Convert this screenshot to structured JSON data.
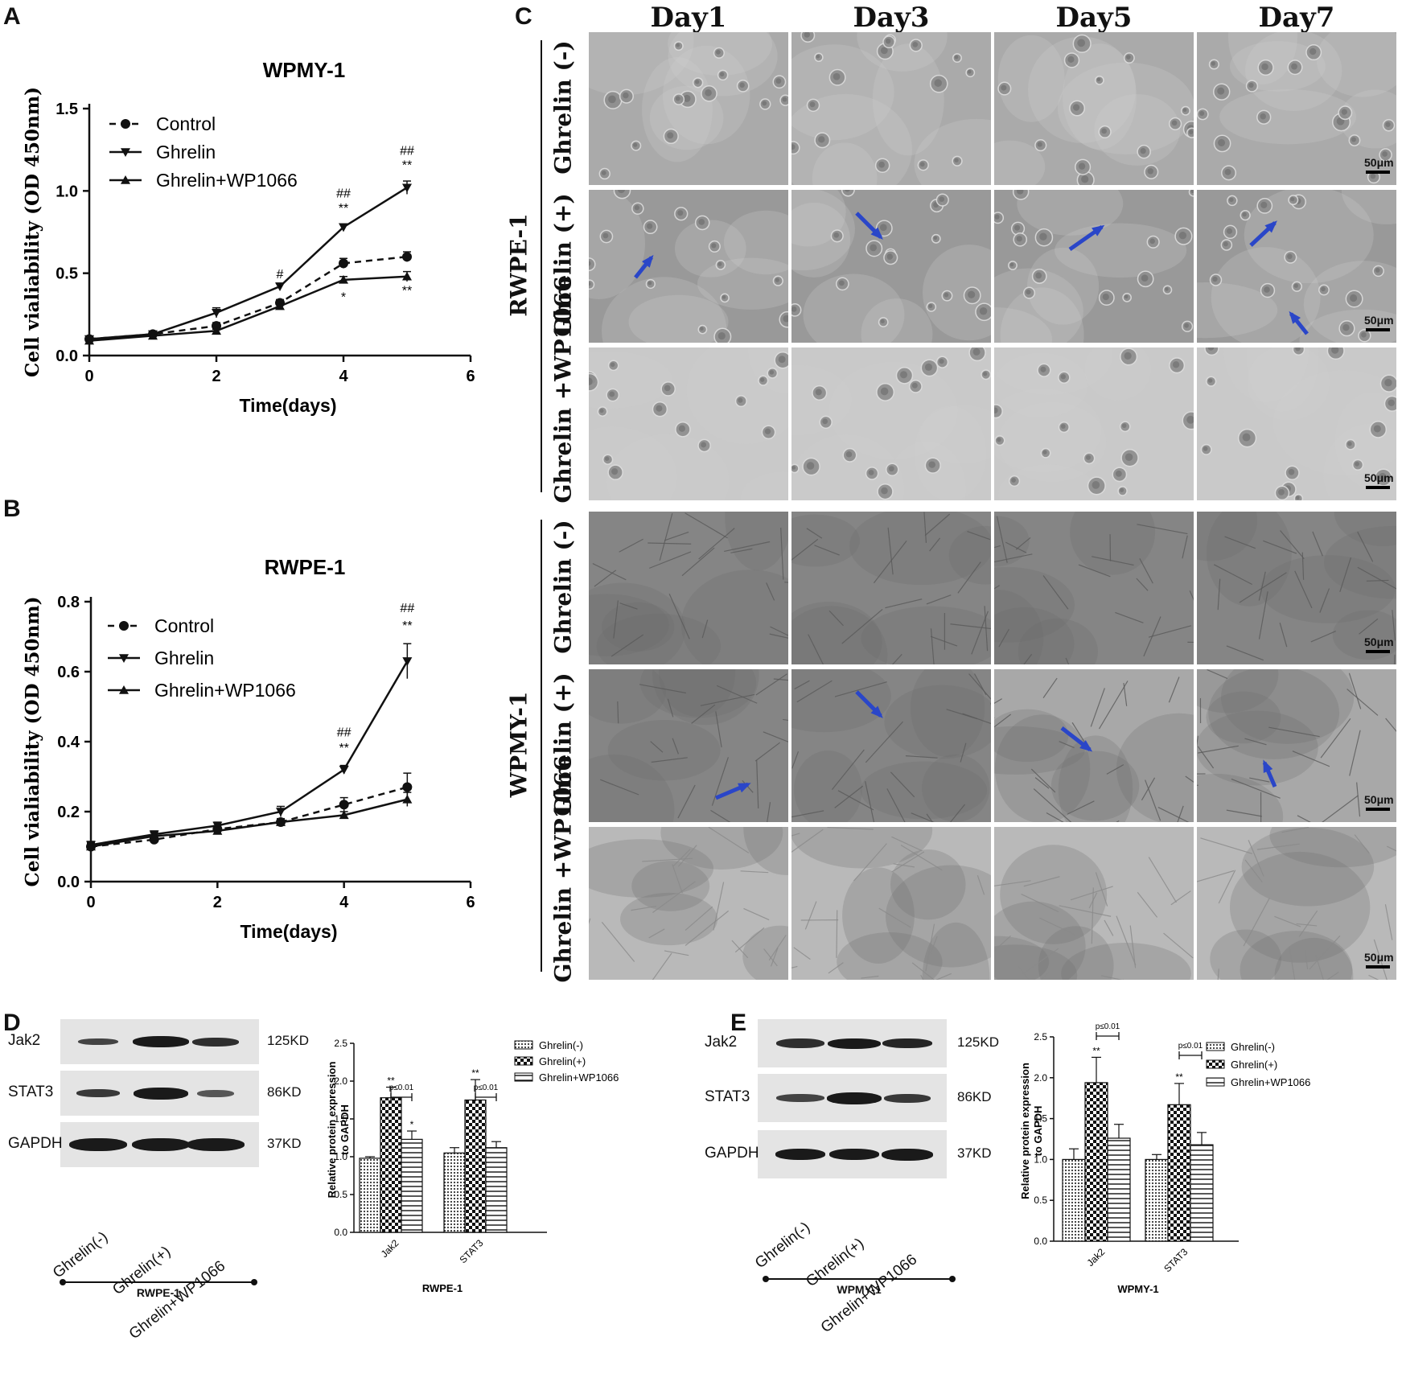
{
  "panels": {
    "A": {
      "label": "A",
      "chart": {
        "type": "line",
        "title": "WPMY-1",
        "xlabel": "Time(days)",
        "ylabel": "Cell vialiability (OD 450nm)",
        "xlim": [
          0,
          6
        ],
        "ylim": [
          0,
          1.5
        ],
        "xticks": [
          "0",
          "2",
          "4",
          "6"
        ],
        "yticks": [
          "0.0",
          "0.5",
          "1.0",
          "1.5"
        ],
        "x": [
          0,
          1,
          2,
          3,
          4,
          5
        ],
        "series": [
          {
            "name": "Control",
            "values": [
              0.1,
              0.13,
              0.18,
              0.32,
              0.56,
              0.6
            ],
            "err": [
              0.01,
              0.01,
              0.02,
              0.02,
              0.03,
              0.03
            ],
            "marker": "circle",
            "dash": true
          },
          {
            "name": "Ghrelin",
            "values": [
              0.1,
              0.13,
              0.26,
              0.42,
              0.78,
              1.02
            ],
            "err": [
              0.01,
              0.01,
              0.03,
              0.02,
              0.02,
              0.04
            ],
            "marker": "triangle-down",
            "dash": false
          },
          {
            "name": "Ghrelin+WP1066",
            "values": [
              0.09,
              0.12,
              0.15,
              0.3,
              0.46,
              0.48
            ],
            "err": [
              0.01,
              0.01,
              0.01,
              0.02,
              0.02,
              0.03
            ],
            "marker": "triangle-up",
            "dash": false
          }
        ],
        "annotations": [
          {
            "x": 3,
            "y": 0.47,
            "text": "#"
          },
          {
            "x": 3,
            "y": 0.38,
            "text": "*"
          },
          {
            "x": 4,
            "y": 0.96,
            "text": "##"
          },
          {
            "x": 4,
            "y": 0.87,
            "text": "**"
          },
          {
            "x": 4,
            "y": 0.33,
            "text": "*"
          },
          {
            "x": 5,
            "y": 1.22,
            "text": "##"
          },
          {
            "x": 5,
            "y": 1.13,
            "text": "**"
          },
          {
            "x": 5,
            "y": 0.37,
            "text": "**"
          }
        ]
      }
    },
    "B": {
      "label": "B",
      "chart": {
        "type": "line",
        "title": "RWPE-1",
        "xlabel": "Time(days)",
        "ylabel": "Cell vialiability (OD 450nm)",
        "xlim": [
          0,
          6
        ],
        "ylim": [
          0,
          0.8
        ],
        "xticks": [
          "0",
          "2",
          "4",
          "6"
        ],
        "yticks": [
          "0.0",
          "0.2",
          "0.4",
          "0.6",
          "0.8"
        ],
        "x": [
          0,
          1,
          2,
          3,
          4,
          5
        ],
        "series": [
          {
            "name": "Control",
            "values": [
              0.1,
              0.12,
              0.15,
              0.17,
              0.22,
              0.27
            ],
            "err": [
              0.01,
              0.01,
              0.01,
              0.01,
              0.02,
              0.04
            ],
            "marker": "circle",
            "dash": true
          },
          {
            "name": "Ghrelin",
            "values": [
              0.105,
              0.135,
              0.16,
              0.2,
              0.32,
              0.63
            ],
            "err": [
              0.01,
              0.01,
              0.01,
              0.015,
              0.012,
              0.05
            ],
            "marker": "triangle-down",
            "dash": false
          },
          {
            "name": "Ghrelin+WP1066",
            "values": [
              0.1,
              0.13,
              0.145,
              0.17,
              0.19,
              0.235
            ],
            "err": [
              0.01,
              0.01,
              0.01,
              0.01,
              0.01,
              0.02
            ],
            "marker": "triangle-up",
            "dash": false
          }
        ],
        "annotations": [
          {
            "x": 4,
            "y": 0.415,
            "text": "##"
          },
          {
            "x": 4,
            "y": 0.37,
            "text": "**"
          },
          {
            "x": 5,
            "y": 0.77,
            "text": "##"
          },
          {
            "x": 5,
            "y": 0.72,
            "text": "**"
          }
        ]
      }
    },
    "C": {
      "label": "C",
      "columns": [
        "Day1",
        "Day3",
        "Day5",
        "Day7"
      ],
      "groups": [
        {
          "name": "RWPE-1",
          "rows": [
            "Ghrelin (-)",
            "Ghrelin (+)",
            "Ghrelin +WP1066"
          ]
        },
        {
          "name": "WPMY-1",
          "rows": [
            "Ghrelin (-)",
            "Ghrelin (+)",
            "Ghrelin +WP1066"
          ]
        }
      ],
      "scale_bar": "50μm",
      "arrow_color": "#2a46c8"
    },
    "D": {
      "label": "D",
      "blot": {
        "proteins": [
          {
            "name": "Jak2",
            "size": "125KD"
          },
          {
            "name": "STAT3",
            "size": "86KD"
          },
          {
            "name": "GAPDH",
            "size": "37KD"
          }
        ],
        "lanes": [
          "Ghrelin(-)",
          "Ghrelin(+)",
          "Ghrelin+WP1066"
        ],
        "cell_line": "RWPE-1"
      },
      "chart": {
        "type": "bar",
        "ylabel": "Relative protein expression to GAPDH",
        "xlabel": "RWPE-1",
        "categories": [
          "Jak2",
          "STAT3"
        ],
        "ylim": [
          0,
          2.5
        ],
        "yticks": [
          "0.0",
          "0.5",
          "1.0",
          "1.5",
          "2.0",
          "2.5"
        ],
        "series": [
          {
            "name": "Ghrelin(-)",
            "values": [
              0.98,
              1.05
            ],
            "err": [
              0.02,
              0.07
            ]
          },
          {
            "name": "Ghrelin(+)",
            "values": [
              1.78,
              1.75
            ],
            "err": [
              0.14,
              0.27
            ]
          },
          {
            "name": "Ghrelin+WP1066",
            "values": [
              1.23,
              1.12
            ],
            "err": [
              0.11,
              0.08
            ]
          }
        ],
        "sig": {
          "stars": [
            "**",
            "*",
            "**",
            ""
          ],
          "bracket": "p≤0.01"
        }
      }
    },
    "E": {
      "label": "E",
      "blot": {
        "proteins": [
          {
            "name": "Jak2",
            "size": "125KD"
          },
          {
            "name": "STAT3",
            "size": "86KD"
          },
          {
            "name": "GAPDH",
            "size": "37KD"
          }
        ],
        "lanes": [
          "Ghrelin(-)",
          "Ghrelin(+)",
          "Ghrelin+WP1066"
        ],
        "cell_line": "WPMY-1"
      },
      "chart": {
        "type": "bar",
        "ylabel": "Relative protein expression to GAPDH",
        "xlabel": "WPMY-1",
        "categories": [
          "Jak2",
          "STAT3"
        ],
        "ylim": [
          0,
          2.5
        ],
        "yticks": [
          "0.0",
          "0.5",
          "1.0",
          "1.5",
          "2.0",
          "2.5"
        ],
        "series": [
          {
            "name": "Ghrelin(-)",
            "values": [
              1.0,
              1.0
            ],
            "err": [
              0.13,
              0.06
            ]
          },
          {
            "name": "Ghrelin(+)",
            "values": [
              1.94,
              1.67
            ],
            "err": [
              0.31,
              0.26
            ]
          },
          {
            "name": "Ghrelin+WP1066",
            "values": [
              1.26,
              1.18
            ],
            "err": [
              0.17,
              0.15
            ]
          }
        ],
        "sig": {
          "stars": [
            "**",
            "",
            "**",
            ""
          ],
          "bracket": "p≤0.01"
        }
      }
    }
  }
}
